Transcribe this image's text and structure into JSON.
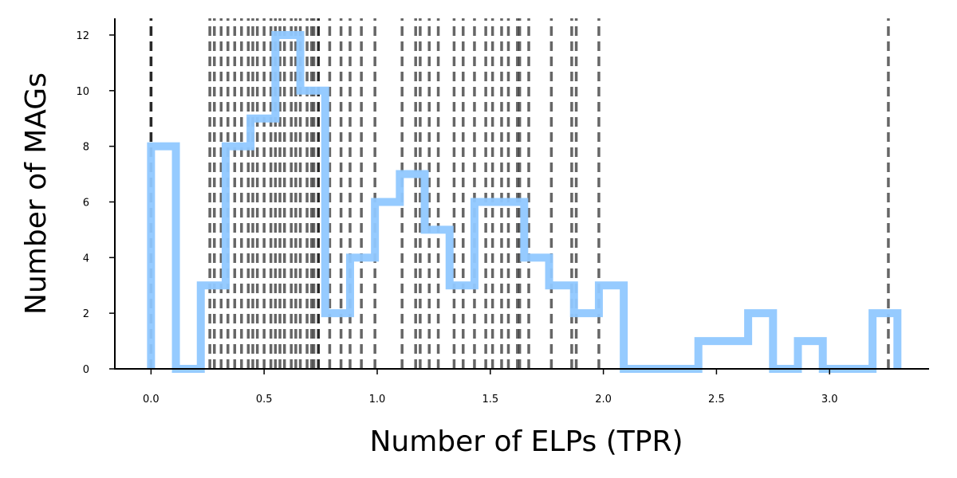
{
  "chart_data": {
    "type": "histogram",
    "xlabel": "Number of ELPs (TPR)",
    "ylabel": "Number of MAGs",
    "xlim": [
      -0.16,
      3.44
    ],
    "ylim": [
      0,
      12.6
    ],
    "x_ticks": [
      0.0,
      0.5,
      1.0,
      1.5,
      2.0,
      2.5,
      3.0
    ],
    "x_tick_labels": [
      "0.0",
      "0.5",
      "1.0",
      "1.5",
      "2.0",
      "2.5",
      "3.0"
    ],
    "y_ticks": [
      0,
      2,
      4,
      6,
      8,
      10,
      12
    ],
    "y_tick_labels": [
      "0",
      "2",
      "4",
      "6",
      "8",
      "10",
      "12"
    ],
    "histogram": {
      "bin_edges": [
        0.0,
        0.11,
        0.22,
        0.33,
        0.44,
        0.55,
        0.66,
        0.77,
        0.88,
        0.99,
        1.1,
        1.21,
        1.32,
        1.43,
        1.54,
        1.65,
        1.76,
        1.87,
        1.98,
        2.09,
        2.2,
        2.31,
        2.42,
        2.53,
        2.64,
        2.75,
        2.86,
        2.97,
        3.08,
        3.19,
        3.3
      ],
      "counts": [
        8,
        0,
        3,
        8,
        9,
        12,
        10,
        2,
        4,
        6,
        7,
        5,
        3,
        6,
        6,
        4,
        3,
        2,
        3,
        0,
        0,
        0,
        1,
        1,
        2,
        0,
        1,
        0,
        0,
        2
      ],
      "color": "#90c8ff"
    },
    "reference_lines": {
      "color": "#000000",
      "style": "dashed",
      "x": [
        0.0,
        0.0,
        0.26,
        0.28,
        0.31,
        0.34,
        0.37,
        0.4,
        0.43,
        0.45,
        0.47,
        0.5,
        0.53,
        0.55,
        0.57,
        0.59,
        0.62,
        0.64,
        0.66,
        0.69,
        0.71,
        0.72,
        0.74,
        0.74,
        0.79,
        0.84,
        0.88,
        0.93,
        0.99,
        1.11,
        1.17,
        1.19,
        1.23,
        1.27,
        1.34,
        1.38,
        1.43,
        1.48,
        1.51,
        1.55,
        1.58,
        1.62,
        1.63,
        1.67,
        1.77,
        1.86,
        1.88,
        1.98,
        3.26
      ]
    }
  }
}
